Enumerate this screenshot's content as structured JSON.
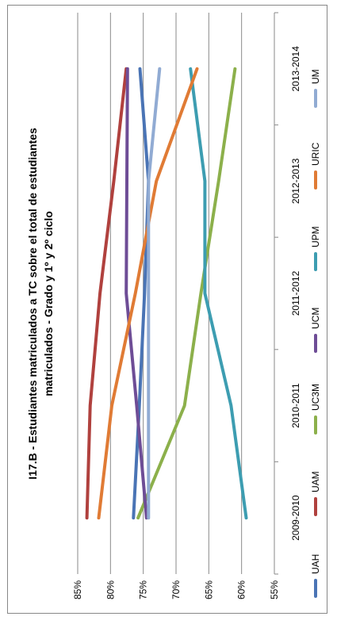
{
  "chart_data": {
    "type": "line",
    "title_lines": [
      "I17.B - Estudiantes matriculados a TC sobre el total de estudiantes",
      "matriculados - Grado y 1º y 2º ciclo"
    ],
    "categories": [
      "2009-2010",
      "2010-2011",
      "2011-2012",
      "2012-2013",
      "2013-2014"
    ],
    "y_ticks": [
      "85%",
      "80%",
      "75%",
      "70%",
      "65%",
      "60%",
      "55%"
    ],
    "ylim": [
      55,
      85
    ],
    "grid": true,
    "legend_position": "right",
    "series": [
      {
        "name": "UAH",
        "color": "#4a74b5",
        "values": [
          76.5,
          75.6,
          74.8,
          74.2,
          75.5
        ]
      },
      {
        "name": "UAM",
        "color": "#b0413e",
        "values": [
          83.6,
          83.1,
          81.6,
          79.5,
          77.6
        ]
      },
      {
        "name": "UC3M",
        "color": "#8cb04b",
        "values": [
          75.8,
          68.7,
          66.2,
          63.5,
          61.0
        ]
      },
      {
        "name": "UCM",
        "color": "#6e4d96",
        "values": [
          74.5,
          76.0,
          77.6,
          77.5,
          77.4
        ]
      },
      {
        "name": "UPM",
        "color": "#3d9db1",
        "values": [
          59.3,
          61.6,
          65.6,
          65.6,
          67.8
        ]
      },
      {
        "name": "URIC",
        "color": "#e07b35",
        "values": [
          81.8,
          79.8,
          76.2,
          73.0,
          66.8
        ]
      },
      {
        "name": "UM",
        "color": "#91abd3",
        "values": [
          74.2,
          74.2,
          74.2,
          74.2,
          72.5
        ]
      }
    ]
  }
}
